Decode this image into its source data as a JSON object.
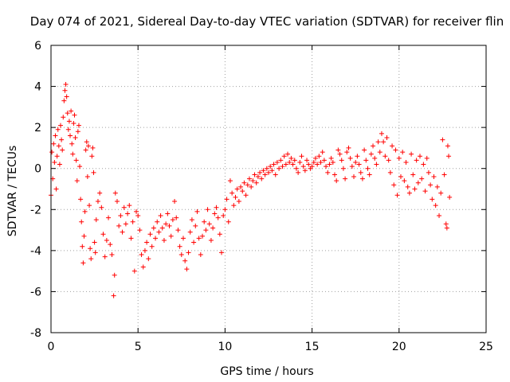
{
  "chart_data": {
    "type": "scatter",
    "title": "Day 074 of 2021, Sidereal Day-to-day VTEC variation (SDTVAR) for receiver flin",
    "xlabel": "GPS time / hours",
    "ylabel": "SDTVAR / TECUs",
    "xlim": [
      0,
      25
    ],
    "ylim": [
      -8,
      6
    ],
    "xticks": [
      0,
      5,
      10,
      15,
      20,
      25
    ],
    "yticks": [
      -8,
      -6,
      -4,
      -2,
      0,
      2,
      4,
      6
    ],
    "xtick_labels": [
      "0",
      "5",
      "10",
      "15",
      "20",
      "25"
    ],
    "ytick_labels": [
      "-8",
      "-6",
      "-4",
      "-2",
      "0",
      "2",
      "4",
      "6"
    ],
    "grid": true,
    "marker": "+",
    "colors": {
      "series": "#ff0000",
      "grid": "#a0a0a0",
      "axis": "#000000"
    },
    "series": [
      {
        "name": "SDTVAR",
        "points": [
          [
            0.0,
            -1.3
          ],
          [
            0.05,
            0.8
          ],
          [
            0.1,
            -0.5
          ],
          [
            0.15,
            1.2
          ],
          [
            0.2,
            0.3
          ],
          [
            0.25,
            1.6
          ],
          [
            0.3,
            -1.0
          ],
          [
            0.35,
            0.6
          ],
          [
            0.4,
            1.9
          ],
          [
            0.45,
            1.1
          ],
          [
            0.5,
            0.2
          ],
          [
            0.55,
            2.1
          ],
          [
            0.6,
            1.4
          ],
          [
            0.65,
            0.9
          ],
          [
            0.7,
            2.5
          ],
          [
            0.75,
            3.3
          ],
          [
            0.8,
            3.8
          ],
          [
            0.85,
            4.1
          ],
          [
            0.9,
            3.5
          ],
          [
            0.95,
            2.7
          ],
          [
            1.0,
            1.9
          ],
          [
            1.05,
            2.3
          ],
          [
            1.1,
            1.6
          ],
          [
            1.15,
            2.8
          ],
          [
            1.2,
            1.2
          ],
          [
            1.25,
            0.7
          ],
          [
            1.3,
            2.2
          ],
          [
            1.35,
            2.6
          ],
          [
            1.4,
            1.5
          ],
          [
            1.45,
            0.4
          ],
          [
            1.5,
            -0.6
          ],
          [
            1.55,
            1.8
          ],
          [
            1.6,
            2.1
          ],
          [
            1.65,
            0.1
          ],
          [
            1.7,
            -1.5
          ],
          [
            1.75,
            -2.6
          ],
          [
            1.8,
            -3.8
          ],
          [
            1.85,
            -4.6
          ],
          [
            1.9,
            -3.3
          ],
          [
            1.95,
            -2.1
          ],
          [
            2.0,
            0.9
          ],
          [
            2.05,
            1.3
          ],
          [
            2.1,
            -0.4
          ],
          [
            2.15,
            1.1
          ],
          [
            2.2,
            -1.8
          ],
          [
            2.25,
            -3.9
          ],
          [
            2.3,
            -4.4
          ],
          [
            2.35,
            0.6
          ],
          [
            2.4,
            1.0
          ],
          [
            2.45,
            -0.2
          ],
          [
            2.5,
            -3.6
          ],
          [
            2.55,
            -4.1
          ],
          [
            2.6,
            -2.5
          ],
          [
            2.7,
            -1.6
          ],
          [
            2.8,
            -1.2
          ],
          [
            2.9,
            -1.9
          ],
          [
            3.0,
            -3.2
          ],
          [
            3.1,
            -4.3
          ],
          [
            3.2,
            -3.5
          ],
          [
            3.3,
            -2.4
          ],
          [
            3.4,
            -3.7
          ],
          [
            3.5,
            -4.2
          ],
          [
            3.6,
            -6.2
          ],
          [
            3.65,
            -5.2
          ],
          [
            3.7,
            -1.2
          ],
          [
            3.8,
            -1.6
          ],
          [
            3.9,
            -2.8
          ],
          [
            4.0,
            -2.3
          ],
          [
            4.1,
            -3.1
          ],
          [
            4.2,
            -1.9
          ],
          [
            4.3,
            -2.7
          ],
          [
            4.4,
            -2.2
          ],
          [
            4.5,
            -1.8
          ],
          [
            4.6,
            -3.4
          ],
          [
            4.7,
            -2.6
          ],
          [
            4.8,
            -5.0
          ],
          [
            4.9,
            -2.1
          ],
          [
            5.0,
            -2.3
          ],
          [
            5.1,
            -3.0
          ],
          [
            5.2,
            -4.2
          ],
          [
            5.3,
            -4.8
          ],
          [
            5.4,
            -4.0
          ],
          [
            5.5,
            -3.6
          ],
          [
            5.6,
            -4.4
          ],
          [
            5.7,
            -3.2
          ],
          [
            5.8,
            -3.8
          ],
          [
            5.9,
            -2.9
          ],
          [
            6.0,
            -3.4
          ],
          [
            6.1,
            -2.6
          ],
          [
            6.2,
            -3.1
          ],
          [
            6.3,
            -2.3
          ],
          [
            6.4,
            -2.9
          ],
          [
            6.5,
            -3.5
          ],
          [
            6.6,
            -2.7
          ],
          [
            6.7,
            -2.2
          ],
          [
            6.8,
            -2.8
          ],
          [
            6.9,
            -3.3
          ],
          [
            7.0,
            -2.5
          ],
          [
            7.1,
            -1.6
          ],
          [
            7.2,
            -2.4
          ],
          [
            7.3,
            -3.0
          ],
          [
            7.4,
            -3.8
          ],
          [
            7.5,
            -4.2
          ],
          [
            7.6,
            -3.4
          ],
          [
            7.7,
            -4.5
          ],
          [
            7.8,
            -4.9
          ],
          [
            7.9,
            -4.1
          ],
          [
            8.0,
            -3.1
          ],
          [
            8.1,
            -2.5
          ],
          [
            8.2,
            -3.6
          ],
          [
            8.3,
            -2.8
          ],
          [
            8.4,
            -2.1
          ],
          [
            8.5,
            -3.4
          ],
          [
            8.6,
            -4.2
          ],
          [
            8.7,
            -3.3
          ],
          [
            8.8,
            -2.6
          ],
          [
            8.9,
            -3.0
          ],
          [
            9.0,
            -2.0
          ],
          [
            9.1,
            -2.7
          ],
          [
            9.2,
            -3.5
          ],
          [
            9.3,
            -2.9
          ],
          [
            9.4,
            -2.2
          ],
          [
            9.5,
            -1.9
          ],
          [
            9.6,
            -2.4
          ],
          [
            9.7,
            -3.2
          ],
          [
            9.8,
            -4.1
          ],
          [
            9.9,
            -2.3
          ],
          [
            10.0,
            -2.0
          ],
          [
            10.1,
            -1.5
          ],
          [
            10.2,
            -2.6
          ],
          [
            10.3,
            -0.6
          ],
          [
            10.4,
            -1.2
          ],
          [
            10.5,
            -1.8
          ],
          [
            10.6,
            -1.4
          ],
          [
            10.7,
            -1.0
          ],
          [
            10.8,
            -1.6
          ],
          [
            10.9,
            -0.9
          ],
          [
            11.0,
            -1.1
          ],
          [
            11.1,
            -0.7
          ],
          [
            11.2,
            -1.3
          ],
          [
            11.3,
            -0.8
          ],
          [
            11.4,
            -0.5
          ],
          [
            11.5,
            -0.9
          ],
          [
            11.6,
            -0.6
          ],
          [
            11.7,
            -0.3
          ],
          [
            11.8,
            -0.7
          ],
          [
            11.9,
            -0.4
          ],
          [
            12.0,
            -0.2
          ],
          [
            12.1,
            -0.5
          ],
          [
            12.2,
            -0.1
          ],
          [
            12.3,
            -0.3
          ],
          [
            12.4,
            0.0
          ],
          [
            12.5,
            -0.2
          ],
          [
            12.6,
            0.1
          ],
          [
            12.7,
            -0.1
          ],
          [
            12.8,
            0.2
          ],
          [
            12.9,
            -0.3
          ],
          [
            13.0,
            0.3
          ],
          [
            13.1,
            0.0
          ],
          [
            13.2,
            0.4
          ],
          [
            13.3,
            0.1
          ],
          [
            13.4,
            0.6
          ],
          [
            13.5,
            0.2
          ],
          [
            13.6,
            0.7
          ],
          [
            13.7,
            0.3
          ],
          [
            13.8,
            0.5
          ],
          [
            13.9,
            0.2
          ],
          [
            14.0,
            0.4
          ],
          [
            14.1,
            0.0
          ],
          [
            14.2,
            -0.2
          ],
          [
            14.3,
            0.3
          ],
          [
            14.4,
            0.6
          ],
          [
            14.5,
            0.1
          ],
          [
            14.6,
            -0.1
          ],
          [
            14.7,
            0.4
          ],
          [
            14.8,
            0.2
          ],
          [
            14.9,
            0.0
          ],
          [
            15.0,
            0.1
          ],
          [
            15.1,
            0.3
          ],
          [
            15.2,
            0.5
          ],
          [
            15.3,
            0.2
          ],
          [
            15.4,
            0.6
          ],
          [
            15.5,
            0.3
          ],
          [
            15.6,
            0.8
          ],
          [
            15.7,
            0.4
          ],
          [
            15.8,
            0.1
          ],
          [
            15.9,
            -0.2
          ],
          [
            16.0,
            0.2
          ],
          [
            16.1,
            0.5
          ],
          [
            16.2,
            0.3
          ],
          [
            16.3,
            -0.3
          ],
          [
            16.4,
            -0.6
          ],
          [
            16.5,
            0.9
          ],
          [
            16.6,
            0.7
          ],
          [
            16.7,
            0.4
          ],
          [
            16.8,
            0.0
          ],
          [
            16.9,
            -0.5
          ],
          [
            17.0,
            0.8
          ],
          [
            17.1,
            1.0
          ],
          [
            17.2,
            0.5
          ],
          [
            17.3,
            0.1
          ],
          [
            17.4,
            -0.4
          ],
          [
            17.5,
            0.3
          ],
          [
            17.6,
            0.6
          ],
          [
            17.7,
            0.2
          ],
          [
            17.8,
            -0.2
          ],
          [
            17.9,
            -0.5
          ],
          [
            18.0,
            0.9
          ],
          [
            18.1,
            0.4
          ],
          [
            18.2,
            0.0
          ],
          [
            18.3,
            -0.3
          ],
          [
            18.4,
            0.7
          ],
          [
            18.5,
            1.1
          ],
          [
            18.6,
            0.5
          ],
          [
            18.7,
            0.2
          ],
          [
            18.8,
            1.3
          ],
          [
            18.9,
            0.8
          ],
          [
            19.0,
            1.7
          ],
          [
            19.1,
            1.3
          ],
          [
            19.2,
            0.6
          ],
          [
            19.3,
            1.5
          ],
          [
            19.4,
            0.4
          ],
          [
            19.5,
            -0.2
          ],
          [
            19.6,
            1.1
          ],
          [
            19.7,
            -0.8
          ],
          [
            19.8,
            0.9
          ],
          [
            19.9,
            -1.3
          ],
          [
            20.0,
            0.5
          ],
          [
            20.1,
            -0.4
          ],
          [
            20.2,
            0.8
          ],
          [
            20.3,
            -0.6
          ],
          [
            20.4,
            0.3
          ],
          [
            20.5,
            -0.9
          ],
          [
            20.6,
            -1.2
          ],
          [
            20.7,
            0.7
          ],
          [
            20.8,
            -0.3
          ],
          [
            20.9,
            -1.0
          ],
          [
            21.0,
            0.4
          ],
          [
            21.1,
            -0.7
          ],
          [
            21.2,
            0.6
          ],
          [
            21.3,
            -0.5
          ],
          [
            21.4,
            0.2
          ],
          [
            21.5,
            -1.1
          ],
          [
            21.6,
            0.5
          ],
          [
            21.7,
            -0.2
          ],
          [
            21.8,
            -0.8
          ],
          [
            21.9,
            -1.5
          ],
          [
            22.0,
            -0.4
          ],
          [
            22.1,
            -1.8
          ],
          [
            22.2,
            -0.9
          ],
          [
            22.3,
            -2.3
          ],
          [
            22.4,
            -1.2
          ],
          [
            22.5,
            1.4
          ],
          [
            22.6,
            -0.3
          ],
          [
            22.7,
            -2.7
          ],
          [
            22.75,
            -2.9
          ],
          [
            22.8,
            1.1
          ],
          [
            22.85,
            0.6
          ],
          [
            22.9,
            -1.4
          ]
        ]
      }
    ]
  }
}
